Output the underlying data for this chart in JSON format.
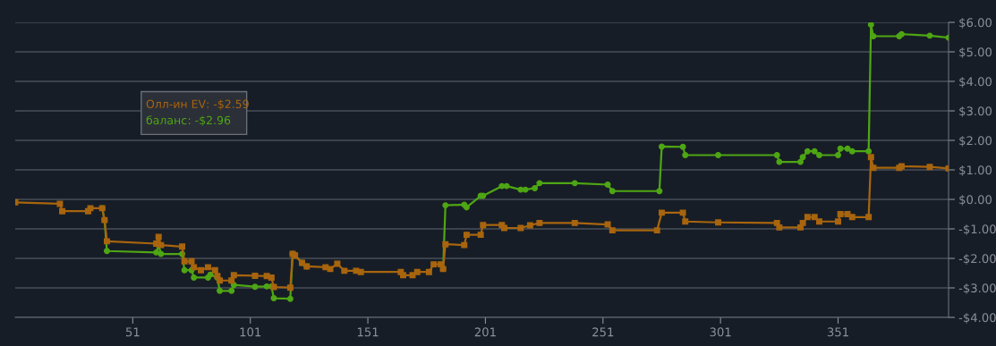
{
  "chart_data": {
    "type": "line",
    "xlim": [
      1,
      398
    ],
    "xticks": [
      51,
      101,
      151,
      201,
      251,
      301,
      351
    ],
    "ylim": [
      -4,
      6
    ],
    "yticks": [
      {
        "value": -4,
        "label": "-$4.00"
      },
      {
        "value": -3,
        "label": "-$3.00"
      },
      {
        "value": -2,
        "label": "-$2.00"
      },
      {
        "value": -1,
        "label": "-$1.00"
      },
      {
        "value": 0,
        "label": "$0.00"
      },
      {
        "value": 1,
        "label": "$1.00"
      },
      {
        "value": 2,
        "label": "$2.00"
      },
      {
        "value": 3,
        "label": "$3.00"
      },
      {
        "value": 4,
        "label": "$4.00"
      },
      {
        "value": 5,
        "label": "$5.00"
      },
      {
        "value": 6,
        "label": "$6.00"
      }
    ],
    "grid": "y",
    "legend": false,
    "series": [
      {
        "name": "Олл-ин EV",
        "color": "#a8650e",
        "marker": "square",
        "x": [
          1,
          20,
          21,
          32,
          33,
          38,
          39,
          40,
          61,
          62,
          63,
          72,
          73,
          76,
          77,
          80,
          83,
          86,
          87,
          88,
          93,
          94,
          103,
          108,
          110,
          111,
          118,
          119,
          120,
          123,
          125,
          133,
          135,
          138,
          141,
          146,
          148,
          165,
          166,
          170,
          172,
          177,
          179,
          182,
          183,
          184,
          192,
          193,
          199,
          200,
          208,
          209,
          216,
          220,
          224,
          239,
          253,
          255,
          274,
          276,
          285,
          286,
          300,
          325,
          326,
          335,
          336,
          338,
          341,
          343,
          351,
          352,
          355,
          357,
          364,
          365,
          366,
          377,
          378,
          390,
          398
        ],
        "values": [
          -0.1,
          -0.15,
          -0.4,
          -0.4,
          -0.3,
          -0.3,
          -0.7,
          -1.42,
          -1.5,
          -1.27,
          -1.55,
          -1.6,
          -2.1,
          -2.1,
          -2.3,
          -2.4,
          -2.3,
          -2.4,
          -2.6,
          -2.75,
          -2.75,
          -2.57,
          -2.59,
          -2.6,
          -2.65,
          -2.97,
          -2.99,
          -1.85,
          -1.9,
          -2.15,
          -2.27,
          -2.3,
          -2.36,
          -2.18,
          -2.42,
          -2.42,
          -2.46,
          -2.46,
          -2.57,
          -2.57,
          -2.46,
          -2.46,
          -2.2,
          -2.2,
          -2.36,
          -1.52,
          -1.55,
          -1.2,
          -1.2,
          -0.87,
          -0.87,
          -0.97,
          -0.97,
          -0.88,
          -0.8,
          -0.8,
          -0.85,
          -1.05,
          -1.05,
          -0.45,
          -0.45,
          -0.75,
          -0.78,
          -0.8,
          -0.95,
          -0.95,
          -0.8,
          -0.6,
          -0.6,
          -0.75,
          -0.75,
          -0.5,
          -0.5,
          -0.6,
          -0.6,
          1.43,
          1.07,
          1.07,
          1.12,
          1.1,
          1.05
        ]
      },
      {
        "name": "баланс",
        "color": "#4ea614",
        "marker": "circle",
        "x": [
          38,
          39,
          40,
          61,
          62,
          63,
          72,
          73,
          76,
          77,
          83,
          84,
          87,
          88,
          93,
          94,
          103,
          108,
          110,
          111,
          118,
          119,
          120,
          123,
          125,
          133,
          135,
          138,
          141,
          146,
          148,
          165,
          166,
          170,
          172,
          177,
          179,
          182,
          183,
          184,
          192,
          193,
          199,
          200,
          208,
          210,
          216,
          218,
          222,
          224,
          239,
          253,
          255,
          275,
          276,
          285,
          286,
          300,
          325,
          326,
          335,
          336,
          338,
          341,
          343,
          351,
          352,
          355,
          357,
          364,
          365,
          366,
          377,
          378,
          390,
          398
        ],
        "values": [
          -0.3,
          -0.7,
          -1.75,
          -1.8,
          -1.55,
          -1.85,
          -1.85,
          -2.4,
          -2.4,
          -2.65,
          -2.65,
          -2.55,
          -2.65,
          -3.1,
          -3.1,
          -2.9,
          -2.96,
          -2.95,
          -2.95,
          -3.35,
          -3.37,
          -1.85,
          -1.9,
          -2.15,
          -2.27,
          null,
          null,
          null,
          null,
          null,
          null,
          null,
          null,
          null,
          null,
          null,
          null,
          null,
          -2.36,
          -0.2,
          -0.18,
          -0.27,
          0.12,
          0.12,
          0.45,
          0.45,
          0.33,
          0.33,
          0.38,
          0.55,
          0.55,
          0.5,
          0.28,
          0.28,
          1.79,
          1.78,
          1.5,
          1.5,
          1.5,
          1.27,
          1.27,
          1.43,
          1.63,
          1.63,
          1.5,
          1.5,
          1.72,
          1.72,
          1.63,
          1.63,
          5.92,
          5.53,
          5.53,
          5.6,
          5.55,
          5.48
        ]
      }
    ],
    "annotations": [
      ": -$2.59",
      ": -$2.96"
    ]
  }
}
